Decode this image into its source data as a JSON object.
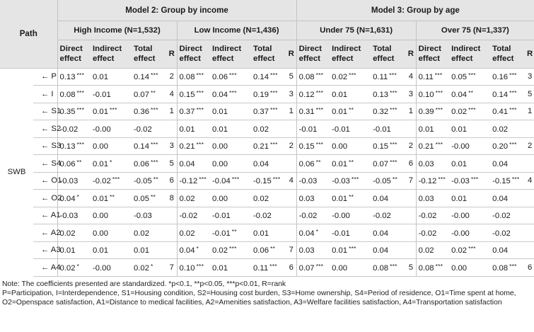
{
  "header": {
    "path": "Path",
    "model2": "Model 2: Group by income",
    "model3": "Model 3: Group by age",
    "groups": [
      "High Income (N=1,532)",
      "Low Income (N=1,436)",
      "Under 75 (N=1,631)",
      "Over 75 (N=1,337)"
    ],
    "cols": {
      "direct": [
        "Direct",
        "effect"
      ],
      "indirect": [
        "Indirect",
        "effect"
      ],
      "total": [
        "Total",
        "effect"
      ],
      "rank": "R"
    }
  },
  "dependent": "SWB",
  "rows": [
    {
      "var": "← P",
      "g": [
        {
          "d": "0.13",
          "ds": "***",
          "i": "0.01",
          "is": "",
          "t": "0.14",
          "ts": "***",
          "r": "2"
        },
        {
          "d": "0.08",
          "ds": "***",
          "i": "0.06",
          "is": "***",
          "t": "0.14",
          "ts": "***",
          "r": "5"
        },
        {
          "d": "0.08",
          "ds": "***",
          "i": "0.02",
          "is": "***",
          "t": "0.11",
          "ts": "***",
          "r": "4"
        },
        {
          "d": "0.11",
          "ds": "***",
          "i": "0.05",
          "is": "***",
          "t": "0.16",
          "ts": "***",
          "r": "3"
        }
      ]
    },
    {
      "var": "← I",
      "g": [
        {
          "d": "0.08",
          "ds": "***",
          "i": "-0.01",
          "is": "",
          "t": "0.07",
          "ts": "**",
          "r": "4"
        },
        {
          "d": "0.15",
          "ds": "***",
          "i": "0.04",
          "is": "***",
          "t": "0.19",
          "ts": "***",
          "r": "3"
        },
        {
          "d": "0.12",
          "ds": "***",
          "i": "0.01",
          "is": "",
          "t": "0.13",
          "ts": "***",
          "r": "3"
        },
        {
          "d": "0.10",
          "ds": "***",
          "i": "0.04",
          "is": "**",
          "t": "0.14",
          "ts": "***",
          "r": "5"
        }
      ]
    },
    {
      "var": "← S1",
      "g": [
        {
          "d": "0.35",
          "ds": "***",
          "i": "0.01",
          "is": "***",
          "t": "0.36",
          "ts": "***",
          "r": "1"
        },
        {
          "d": "0.37",
          "ds": "***",
          "i": "0.01",
          "is": "",
          "t": "0.37",
          "ts": "***",
          "r": "1"
        },
        {
          "d": "0.31",
          "ds": "***",
          "i": "0.01",
          "is": "**",
          "t": "0.32",
          "ts": "***",
          "r": "1"
        },
        {
          "d": "0.39",
          "ds": "***",
          "i": "0.02",
          "is": "***",
          "t": "0.41",
          "ts": "***",
          "r": "1"
        }
      ]
    },
    {
      "var": "← S2",
      "g": [
        {
          "d": "-0.02",
          "ds": "",
          "i": "-0.00",
          "is": "",
          "t": "-0.02",
          "ts": "",
          "r": ""
        },
        {
          "d": "0.01",
          "ds": "",
          "i": "0.01",
          "is": "",
          "t": "0.02",
          "ts": "",
          "r": ""
        },
        {
          "d": "-0.01",
          "ds": "",
          "i": "-0.01",
          "is": "",
          "t": "-0.01",
          "ts": "",
          "r": ""
        },
        {
          "d": "0.01",
          "ds": "",
          "i": "0.01",
          "is": "",
          "t": "0.02",
          "ts": "",
          "r": ""
        }
      ]
    },
    {
      "var": "← S3",
      "g": [
        {
          "d": "0.13",
          "ds": "***",
          "i": "0.00",
          "is": "",
          "t": "0.14",
          "ts": "***",
          "r": "3"
        },
        {
          "d": "0.21",
          "ds": "***",
          "i": "0.00",
          "is": "",
          "t": "0.21",
          "ts": "***",
          "r": "2"
        },
        {
          "d": "0.15",
          "ds": "***",
          "i": "0.00",
          "is": "",
          "t": "0.15",
          "ts": "***",
          "r": "2"
        },
        {
          "d": "0.21",
          "ds": "***",
          "i": "-0.00",
          "is": "",
          "t": "0.20",
          "ts": "***",
          "r": "2"
        }
      ]
    },
    {
      "var": "← S4",
      "g": [
        {
          "d": "0.06",
          "ds": "**",
          "i": "0.01",
          "is": "*",
          "t": "0.06",
          "ts": "***",
          "r": "5"
        },
        {
          "d": "0.04",
          "ds": "",
          "i": "0.00",
          "is": "",
          "t": "0.04",
          "ts": "",
          "r": ""
        },
        {
          "d": "0.06",
          "ds": "**",
          "i": "0.01",
          "is": "**",
          "t": "0.07",
          "ts": "***",
          "r": "6"
        },
        {
          "d": "0.03",
          "ds": "",
          "i": "0.01",
          "is": "",
          "t": "0.04",
          "ts": "",
          "r": ""
        }
      ]
    },
    {
      "var": "← O1",
      "g": [
        {
          "d": "-0.03",
          "ds": "",
          "i": "-0.02",
          "is": "***",
          "t": "-0.05",
          "ts": "**",
          "r": "6"
        },
        {
          "d": "-0.12",
          "ds": "***",
          "i": "-0.04",
          "is": "***",
          "t": "-0.15",
          "ts": "***",
          "r": "4"
        },
        {
          "d": "-0.03",
          "ds": "",
          "i": "-0.03",
          "is": "***",
          "t": "-0.05",
          "ts": "**",
          "r": "7"
        },
        {
          "d": "-0.12",
          "ds": "***",
          "i": "-0.03",
          "is": "***",
          "t": "-0.15",
          "ts": "***",
          "r": "4"
        }
      ]
    },
    {
      "var": "← O2",
      "g": [
        {
          "d": "0.04",
          "ds": "*",
          "i": "0.01",
          "is": "**",
          "t": "0.05",
          "ts": "**",
          "r": "8"
        },
        {
          "d": "0.02",
          "ds": "",
          "i": "0.00",
          "is": "",
          "t": "0.02",
          "ts": "",
          "r": ""
        },
        {
          "d": "0.03",
          "ds": "",
          "i": "0.01",
          "is": "**",
          "t": "0.04",
          "ts": "",
          "r": ""
        },
        {
          "d": "0.03",
          "ds": "",
          "i": "0.01",
          "is": "",
          "t": "0.04",
          "ts": "",
          "r": ""
        }
      ]
    },
    {
      "var": "← A1",
      "g": [
        {
          "d": "-0.03",
          "ds": "",
          "i": "0.00",
          "is": "",
          "t": "-0.03",
          "ts": "",
          "r": ""
        },
        {
          "d": "-0.02",
          "ds": "",
          "i": "-0.01",
          "is": "",
          "t": "-0.02",
          "ts": "",
          "r": ""
        },
        {
          "d": "-0.02",
          "ds": "",
          "i": "-0.00",
          "is": "",
          "t": "-0.02",
          "ts": "",
          "r": ""
        },
        {
          "d": "-0.02",
          "ds": "",
          "i": "-0.00",
          "is": "",
          "t": "-0.02",
          "ts": "",
          "r": ""
        }
      ]
    },
    {
      "var": "← A2",
      "g": [
        {
          "d": "0.02",
          "ds": "",
          "i": "0.00",
          "is": "",
          "t": "0.02",
          "ts": "",
          "r": ""
        },
        {
          "d": "0.02",
          "ds": "",
          "i": "-0.01",
          "is": "**",
          "t": "0.01",
          "ts": "",
          "r": ""
        },
        {
          "d": "0.04",
          "ds": "*",
          "i": "-0.01",
          "is": "",
          "t": "0.04",
          "ts": "",
          "r": ""
        },
        {
          "d": "-0.02",
          "ds": "",
          "i": "-0.00",
          "is": "",
          "t": "-0.02",
          "ts": "",
          "r": ""
        }
      ]
    },
    {
      "var": "← A3",
      "g": [
        {
          "d": "0.01",
          "ds": "",
          "i": "0.01",
          "is": "",
          "t": "0.01",
          "ts": "",
          "r": ""
        },
        {
          "d": "0.04",
          "ds": "*",
          "i": "0.02",
          "is": "***",
          "t": "0.06",
          "ts": "**",
          "r": "7"
        },
        {
          "d": "0.03",
          "ds": "",
          "i": "0.01",
          "is": "***",
          "t": "0.04",
          "ts": "",
          "r": ""
        },
        {
          "d": "0.02",
          "ds": "",
          "i": "0.02",
          "is": "***",
          "t": "0.04",
          "ts": "",
          "r": ""
        }
      ]
    },
    {
      "var": "← A4",
      "g": [
        {
          "d": "0.02",
          "ds": "*",
          "i": "-0.00",
          "is": "",
          "t": "0.02",
          "ts": "*",
          "r": "7"
        },
        {
          "d": "0.10",
          "ds": "***",
          "i": "0.01",
          "is": "",
          "t": "0.11",
          "ts": "***",
          "r": "6"
        },
        {
          "d": "0.07",
          "ds": "***",
          "i": "0.00",
          "is": "",
          "t": "0.08",
          "ts": "***",
          "r": "5"
        },
        {
          "d": "0.08",
          "ds": "***",
          "i": "0.00",
          "is": "",
          "t": "0.08",
          "ts": "***",
          "r": "6"
        }
      ]
    }
  ],
  "notes": [
    "Note: The coefficients presented are standardized. *p<0.1, **p<0.05, ***p<0.01, R=rank",
    "P=Participation, I=Interdependence, S1=Housing condition, S2=Housing cost burden, S3=Home ownership, S4=Period of residence, O1=Time spent at home, O2=Openspace satisfaction, A1=Distance to medical facilities, A2=Amenities satisfaction, A3=Welfare facilities satisfaction, A4=Transportation satisfaction"
  ]
}
